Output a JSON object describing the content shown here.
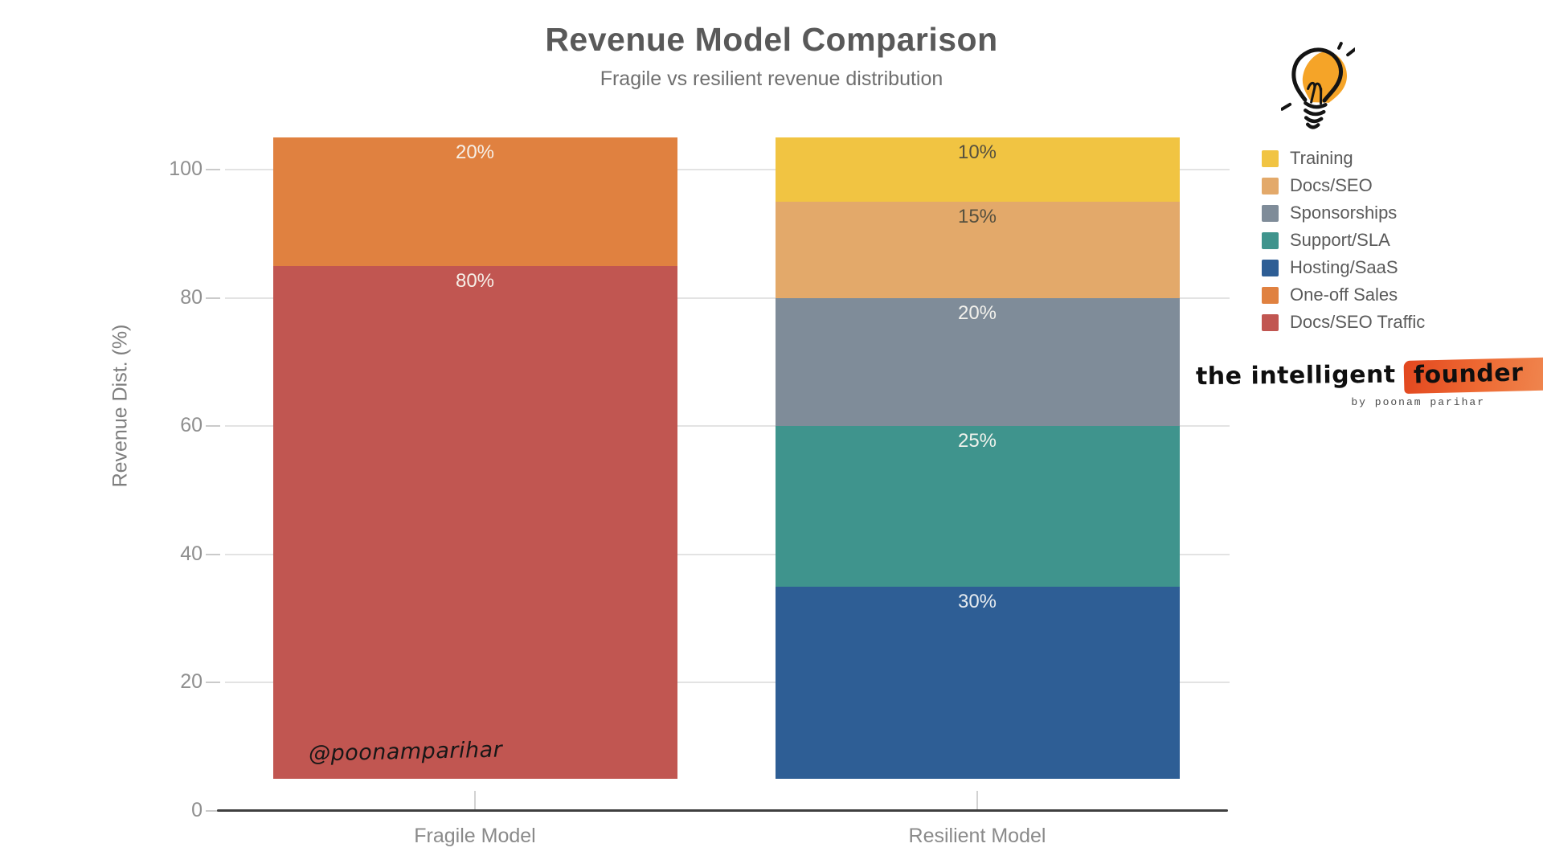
{
  "header": {
    "title": "Revenue Model Comparison",
    "subtitle": "Fragile vs resilient revenue distribution"
  },
  "chart_data": {
    "type": "bar",
    "stacked": true,
    "title": "Revenue Model Comparison",
    "subtitle": "Fragile vs resilient revenue distribution",
    "ylabel": "Revenue Dist. (%)",
    "xlabel": "",
    "yticks": [
      0,
      20,
      40,
      60,
      80,
      100
    ],
    "ylim": [
      0,
      109
    ],
    "bar_base_offset": 5,
    "grid": "horizontal",
    "legend_position": "upper right outside",
    "categories": [
      "Fragile Model",
      "Resilient Model"
    ],
    "bars": [
      {
        "category": "Fragile Model",
        "segments": [
          {
            "name": "Docs/SEO Traffic",
            "value": 80,
            "display": "80%",
            "color": "#C15651",
            "label_color": "#F6EFE7"
          },
          {
            "name": "One-off Sales",
            "value": 20,
            "display": "20%",
            "color": "#E08140",
            "label_color": "#F6EFE7"
          }
        ]
      },
      {
        "category": "Resilient Model",
        "segments": [
          {
            "name": "Hosting/SaaS",
            "value": 30,
            "display": "30%",
            "color": "#2E5E95",
            "label_color": "#E6EBEF"
          },
          {
            "name": "Support/SLA",
            "value": 25,
            "display": "25%",
            "color": "#3F948D",
            "label_color": "#EFF2EC"
          },
          {
            "name": "Sponsorships",
            "value": 20,
            "display": "20%",
            "color": "#7F8C99",
            "label_color": "#F2F1EC"
          },
          {
            "name": "Docs/SEO",
            "value": 15,
            "display": "15%",
            "color": "#E3A96A",
            "label_color": "#56503F"
          },
          {
            "name": "Training",
            "value": 10,
            "display": "10%",
            "color": "#F1C442",
            "label_color": "#56503F"
          }
        ]
      }
    ]
  },
  "legend": {
    "items": [
      {
        "label": "Training",
        "color": "#F1C442"
      },
      {
        "label": "Docs/SEO",
        "color": "#E3A96A"
      },
      {
        "label": "Sponsorships",
        "color": "#7F8C99"
      },
      {
        "label": "Support/SLA",
        "color": "#3F948D"
      },
      {
        "label": "Hosting/SaaS",
        "color": "#2E5E95"
      },
      {
        "label": "One-off Sales",
        "color": "#E08140"
      },
      {
        "label": "Docs/SEO Traffic",
        "color": "#C15651"
      }
    ]
  },
  "watermark": {
    "handle": "@poonamparihar"
  },
  "brand": {
    "name_prefix": "the intelligent",
    "name_highlight": "founder",
    "byline": "by poonam parihar",
    "brush_color": "#E8502B"
  },
  "icons": {
    "lightbulb": {
      "name": "lightbulb-icon",
      "fill": "#F5A428",
      "stroke": "#141414"
    }
  }
}
